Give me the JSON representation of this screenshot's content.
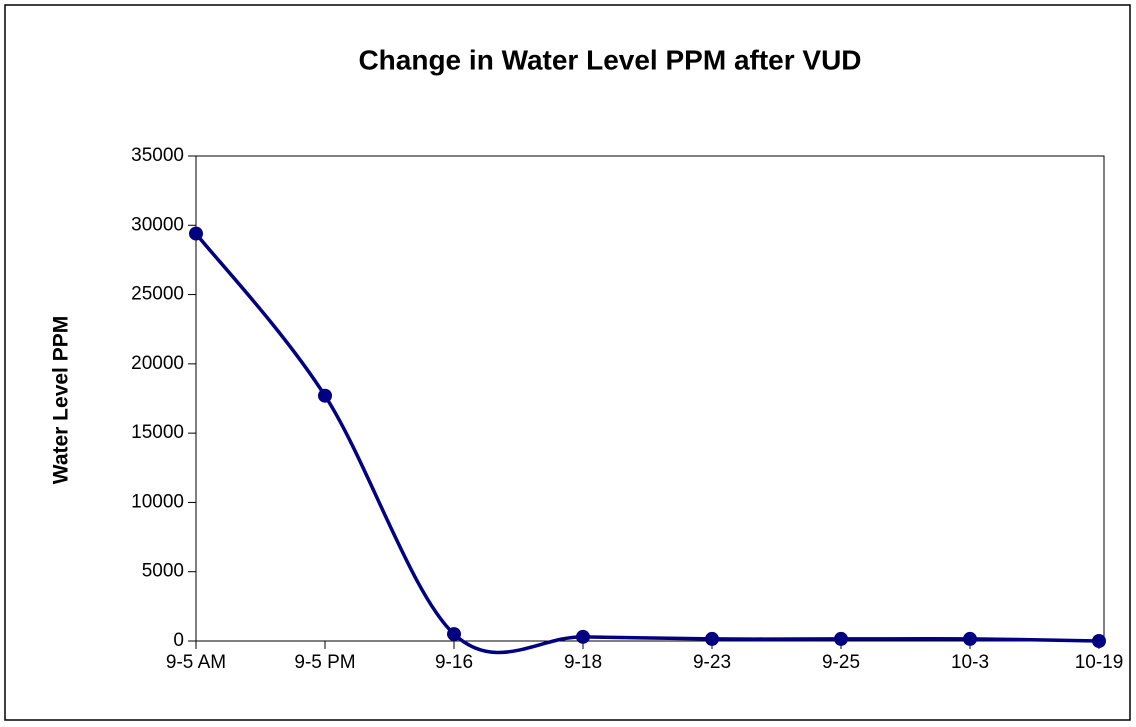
{
  "chart_data": {
    "type": "line",
    "title": "Change in Water Level PPM after VUD",
    "y_label": "Water Level PPM",
    "categories": [
      "9-5 AM",
      "9-5 PM",
      "9-16",
      "9-18",
      "9-23",
      "9-25",
      "10-3",
      "10-19"
    ],
    "series": [
      {
        "name": "Water Level PPM",
        "color": "#000080",
        "values": [
          29400,
          17700,
          500,
          300,
          150,
          150,
          150,
          0
        ]
      }
    ],
    "ylim": [
      0,
      35000
    ],
    "yticks": [
      0,
      5000,
      10000,
      15000,
      20000,
      25000,
      30000,
      35000
    ],
    "grid": false,
    "smooth": true,
    "legend": false
  }
}
